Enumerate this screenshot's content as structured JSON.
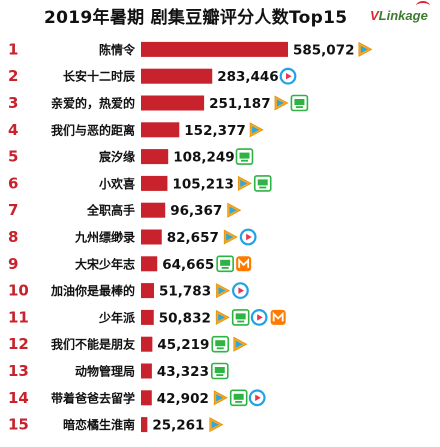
{
  "title": "2019年暑期 剧集豆瓣评分人数Top15",
  "brand": {
    "prefix": "V",
    "rest": "Linkage"
  },
  "colors": {
    "bar": "#c8222c",
    "tencent": "#f5a623",
    "tencent_play": "#2aa8e0",
    "iqiyi": "#2fb344",
    "youku": "#1fa3e6",
    "mango": "#ff7b00"
  },
  "chart_data": {
    "type": "bar",
    "orientation": "horizontal",
    "title": "2019年暑期 剧集豆瓣评分人数Top15",
    "xlabel": "",
    "ylabel": "",
    "xlim": [
      0,
      585072
    ],
    "ranks": [
      "1",
      "2",
      "3",
      "4",
      "5",
      "6",
      "7",
      "8",
      "9",
      "10",
      "11",
      "12",
      "13",
      "14",
      "15"
    ],
    "categories": [
      "陈情令",
      "长安十二时辰",
      "亲爱的，热爱的",
      "我们与恶的距离",
      "宸汐缘",
      "小欢喜",
      "全职高手",
      "九州缥缈录",
      "大宋少年志",
      "加油你是最棒的",
      "少年派",
      "我们不能是朋友",
      "动物管理局",
      "带着爸爸去留学",
      "暗恋橘生淮南"
    ],
    "values": [
      585072,
      283446,
      251187,
      152377,
      108249,
      105213,
      96367,
      82657,
      64665,
      51783,
      50832,
      45219,
      43323,
      42902,
      25261
    ],
    "value_labels": [
      "585,072",
      "283,446",
      "251,187",
      "152,377",
      "108,249",
      "105,213",
      "96,367",
      "82,657",
      "64,665",
      "51,783",
      "50,832",
      "45,219",
      "43,323",
      "42,902",
      "25,261"
    ],
    "platforms": [
      [
        "tencent"
      ],
      [
        "youku"
      ],
      [
        "tencent",
        "iqiyi"
      ],
      [
        "tencent"
      ],
      [
        "iqiyi"
      ],
      [
        "tencent",
        "iqiyi"
      ],
      [
        "tencent"
      ],
      [
        "tencent",
        "youku"
      ],
      [
        "iqiyi",
        "mango"
      ],
      [
        "tencent",
        "youku"
      ],
      [
        "tencent",
        "iqiyi",
        "youku",
        "mango"
      ],
      [
        "iqiyi",
        "tencent"
      ],
      [
        "iqiyi"
      ],
      [
        "tencent",
        "iqiyi",
        "youku"
      ],
      [
        "tencent"
      ]
    ]
  }
}
